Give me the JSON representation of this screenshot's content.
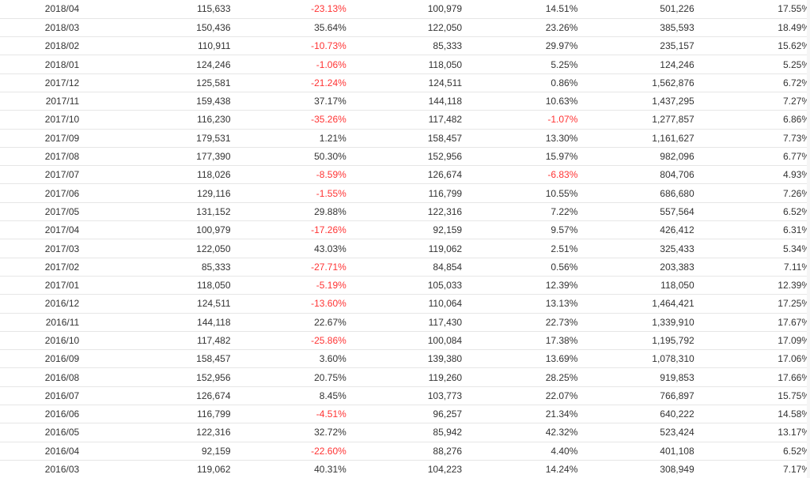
{
  "table": {
    "rows": [
      {
        "month": "2018/04",
        "v1": "115,633",
        "p1": "-23.13%",
        "v2": "100,979",
        "p2": "14.51%",
        "v3": "501,226",
        "p3": "17.55%"
      },
      {
        "month": "2018/03",
        "v1": "150,436",
        "p1": "35.64%",
        "v2": "122,050",
        "p2": "23.26%",
        "v3": "385,593",
        "p3": "18.49%"
      },
      {
        "month": "2018/02",
        "v1": "110,911",
        "p1": "-10.73%",
        "v2": "85,333",
        "p2": "29.97%",
        "v3": "235,157",
        "p3": "15.62%"
      },
      {
        "month": "2018/01",
        "v1": "124,246",
        "p1": "-1.06%",
        "v2": "118,050",
        "p2": "5.25%",
        "v3": "124,246",
        "p3": "5.25%"
      },
      {
        "month": "2017/12",
        "v1": "125,581",
        "p1": "-21.24%",
        "v2": "124,511",
        "p2": "0.86%",
        "v3": "1,562,876",
        "p3": "6.72%"
      },
      {
        "month": "2017/11",
        "v1": "159,438",
        "p1": "37.17%",
        "v2": "144,118",
        "p2": "10.63%",
        "v3": "1,437,295",
        "p3": "7.27%"
      },
      {
        "month": "2017/10",
        "v1": "116,230",
        "p1": "-35.26%",
        "v2": "117,482",
        "p2": "-1.07%",
        "v3": "1,277,857",
        "p3": "6.86%"
      },
      {
        "month": "2017/09",
        "v1": "179,531",
        "p1": "1.21%",
        "v2": "158,457",
        "p2": "13.30%",
        "v3": "1,161,627",
        "p3": "7.73%"
      },
      {
        "month": "2017/08",
        "v1": "177,390",
        "p1": "50.30%",
        "v2": "152,956",
        "p2": "15.97%",
        "v3": "982,096",
        "p3": "6.77%"
      },
      {
        "month": "2017/07",
        "v1": "118,026",
        "p1": "-8.59%",
        "v2": "126,674",
        "p2": "-6.83%",
        "v3": "804,706",
        "p3": "4.93%"
      },
      {
        "month": "2017/06",
        "v1": "129,116",
        "p1": "-1.55%",
        "v2": "116,799",
        "p2": "10.55%",
        "v3": "686,680",
        "p3": "7.26%"
      },
      {
        "month": "2017/05",
        "v1": "131,152",
        "p1": "29.88%",
        "v2": "122,316",
        "p2": "7.22%",
        "v3": "557,564",
        "p3": "6.52%"
      },
      {
        "month": "2017/04",
        "v1": "100,979",
        "p1": "-17.26%",
        "v2": "92,159",
        "p2": "9.57%",
        "v3": "426,412",
        "p3": "6.31%"
      },
      {
        "month": "2017/03",
        "v1": "122,050",
        "p1": "43.03%",
        "v2": "119,062",
        "p2": "2.51%",
        "v3": "325,433",
        "p3": "5.34%"
      },
      {
        "month": "2017/02",
        "v1": "85,333",
        "p1": "-27.71%",
        "v2": "84,854",
        "p2": "0.56%",
        "v3": "203,383",
        "p3": "7.11%"
      },
      {
        "month": "2017/01",
        "v1": "118,050",
        "p1": "-5.19%",
        "v2": "105,033",
        "p2": "12.39%",
        "v3": "118,050",
        "p3": "12.39%"
      },
      {
        "month": "2016/12",
        "v1": "124,511",
        "p1": "-13.60%",
        "v2": "110,064",
        "p2": "13.13%",
        "v3": "1,464,421",
        "p3": "17.25%"
      },
      {
        "month": "2016/11",
        "v1": "144,118",
        "p1": "22.67%",
        "v2": "117,430",
        "p2": "22.73%",
        "v3": "1,339,910",
        "p3": "17.67%"
      },
      {
        "month": "2016/10",
        "v1": "117,482",
        "p1": "-25.86%",
        "v2": "100,084",
        "p2": "17.38%",
        "v3": "1,195,792",
        "p3": "17.09%"
      },
      {
        "month": "2016/09",
        "v1": "158,457",
        "p1": "3.60%",
        "v2": "139,380",
        "p2": "13.69%",
        "v3": "1,078,310",
        "p3": "17.06%"
      },
      {
        "month": "2016/08",
        "v1": "152,956",
        "p1": "20.75%",
        "v2": "119,260",
        "p2": "28.25%",
        "v3": "919,853",
        "p3": "17.66%"
      },
      {
        "month": "2016/07",
        "v1": "126,674",
        "p1": "8.45%",
        "v2": "103,773",
        "p2": "22.07%",
        "v3": "766,897",
        "p3": "15.75%"
      },
      {
        "month": "2016/06",
        "v1": "116,799",
        "p1": "-4.51%",
        "v2": "96,257",
        "p2": "21.34%",
        "v3": "640,222",
        "p3": "14.58%"
      },
      {
        "month": "2016/05",
        "v1": "122,316",
        "p1": "32.72%",
        "v2": "85,942",
        "p2": "42.32%",
        "v3": "523,424",
        "p3": "13.17%"
      },
      {
        "month": "2016/04",
        "v1": "92,159",
        "p1": "-22.60%",
        "v2": "88,276",
        "p2": "4.40%",
        "v3": "401,108",
        "p3": "6.52%"
      },
      {
        "month": "2016/03",
        "v1": "119,062",
        "p1": "40.31%",
        "v2": "104,223",
        "p2": "14.24%",
        "v3": "308,949",
        "p3": "7.17%"
      }
    ]
  },
  "colors": {
    "negative": "#ff3333",
    "text": "#333333",
    "row_border": "#e6e6e6"
  }
}
